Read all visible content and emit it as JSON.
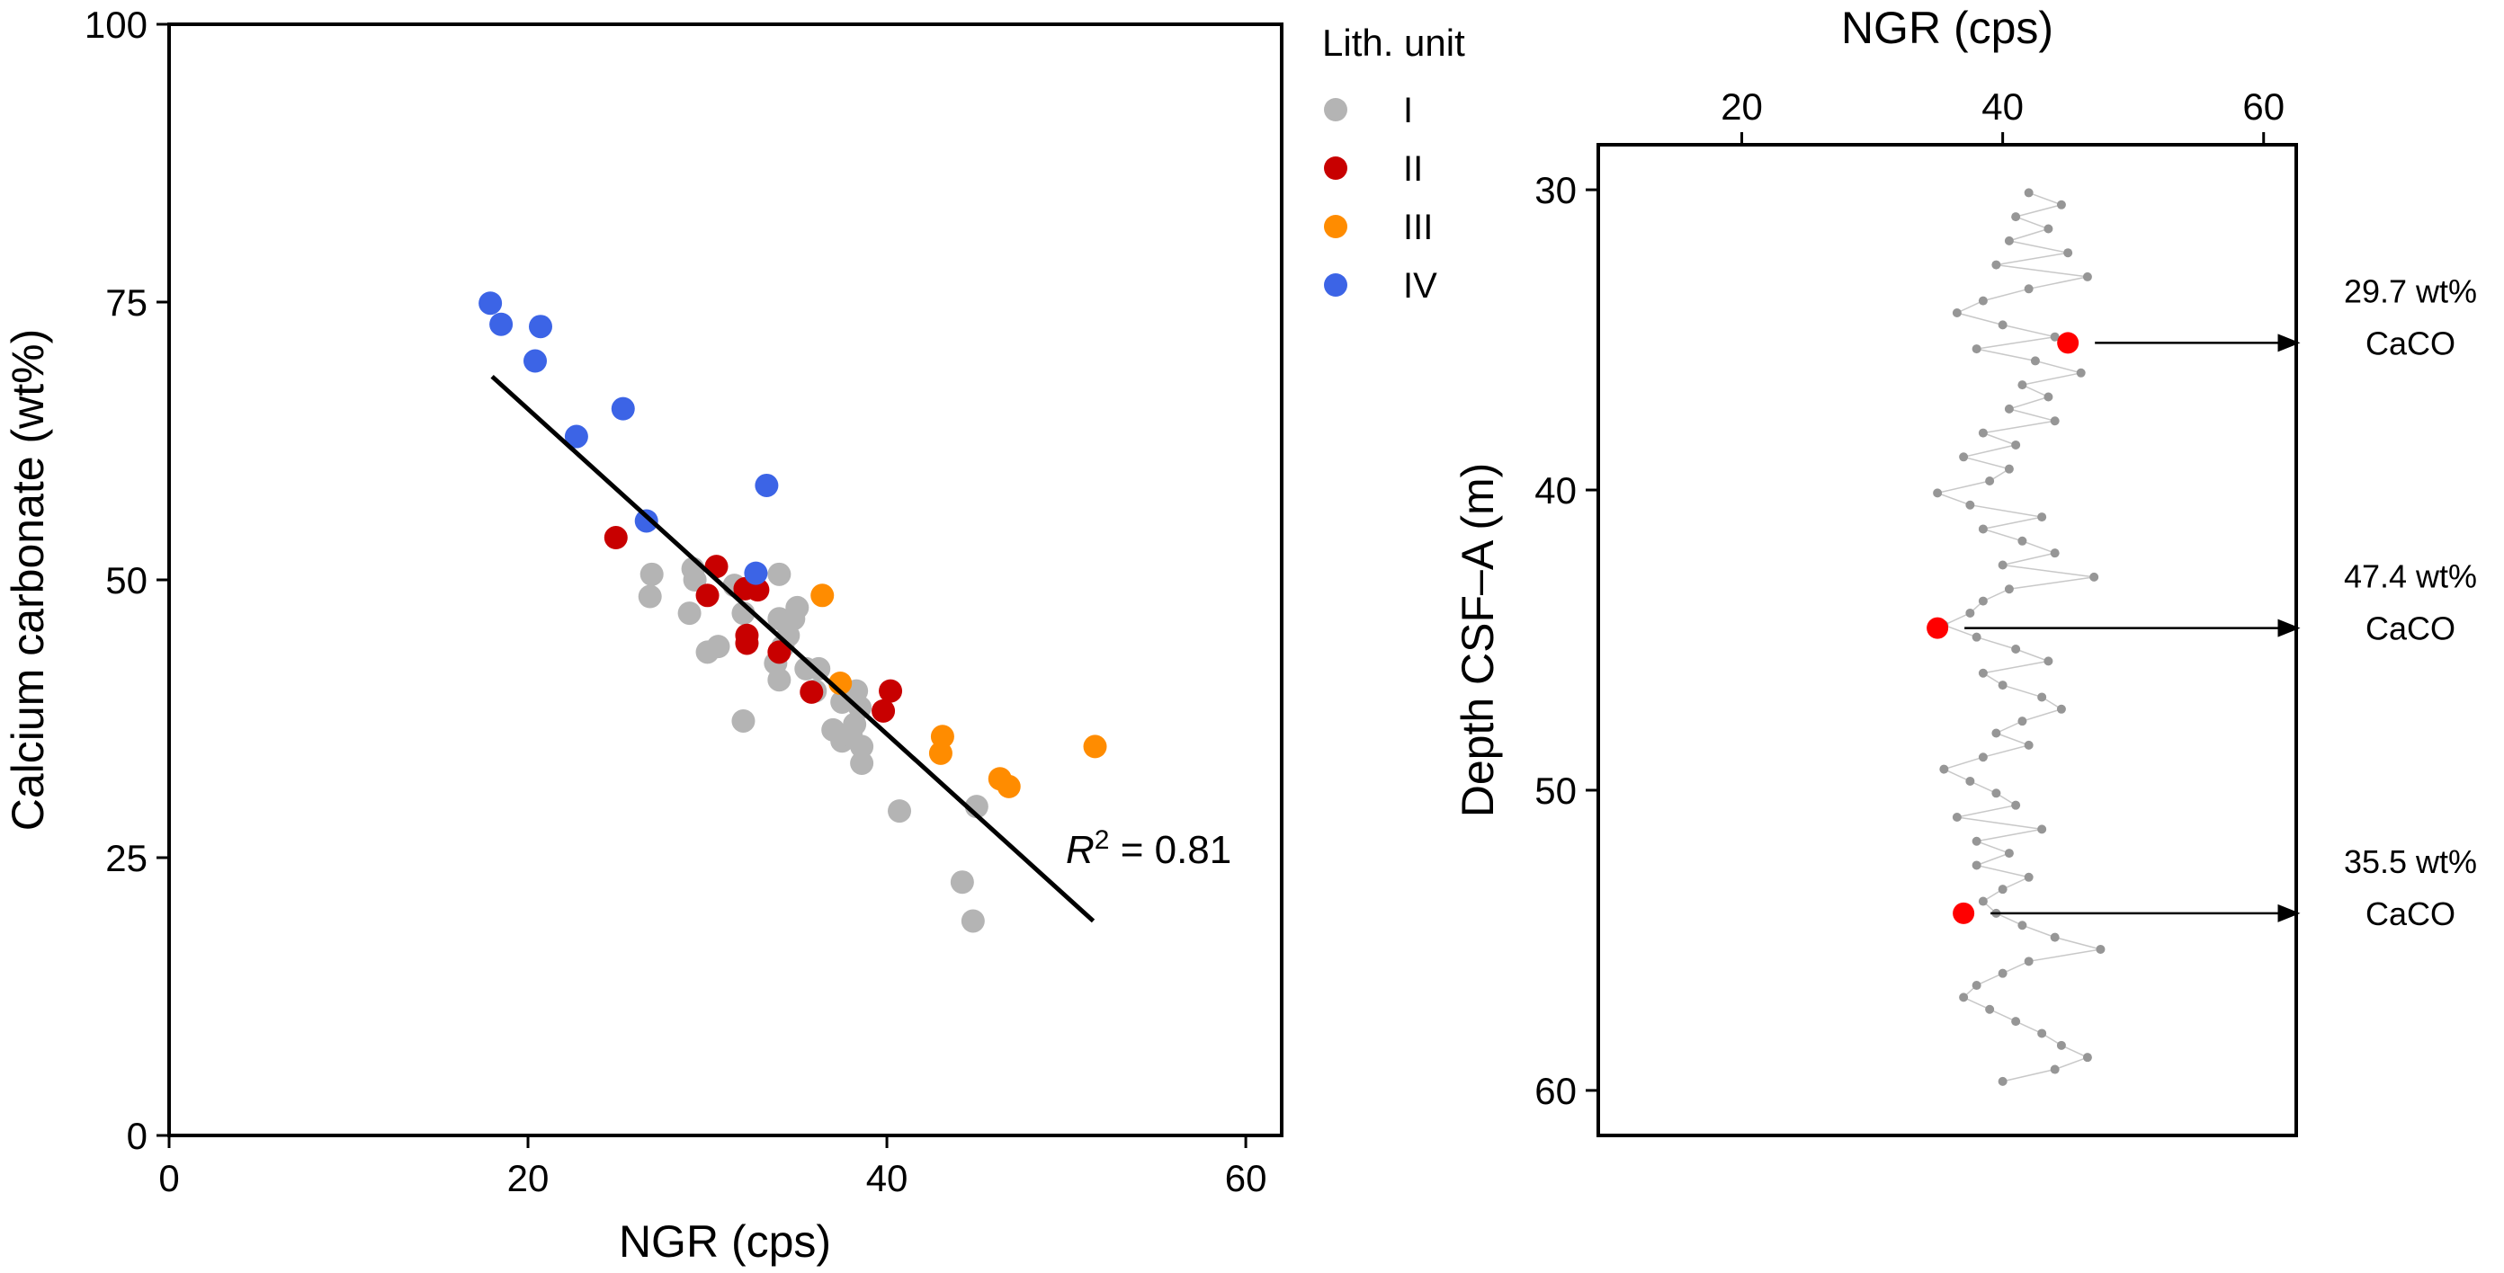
{
  "chart_data": [
    {
      "type": "scatter",
      "xlabel": "NGR (cps)",
      "ylabel": "Calcium carbonate (wt%)",
      "xlim": [
        0,
        62
      ],
      "ylim": [
        0,
        100
      ],
      "xticks": [
        0,
        20,
        40,
        60
      ],
      "yticks": [
        0,
        25,
        50,
        75,
        100
      ],
      "legend": {
        "title": "Lith. unit",
        "placement": "outside-right",
        "entries": [
          {
            "label": "I",
            "color": "#b4b4b4"
          },
          {
            "label": "II",
            "color": "#c80000"
          },
          {
            "label": "III",
            "color": "#ff8c00"
          },
          {
            "label": "IV",
            "color": "#3c64e6"
          }
        ]
      },
      "series": [
        {
          "name": "I",
          "color": "#b4b4b4",
          "points": [
            [
              26.9,
              50.5
            ],
            [
              26.8,
              48.5
            ],
            [
              29.2,
              51.0
            ],
            [
              29.3,
              50.0
            ],
            [
              29.0,
              47.0
            ],
            [
              30.0,
              43.5
            ],
            [
              30.6,
              44.0
            ],
            [
              32.0,
              47.0
            ],
            [
              31.5,
              49.5
            ],
            [
              34.0,
              50.5
            ],
            [
              34.0,
              46.5
            ],
            [
              34.8,
              46.5
            ],
            [
              35.0,
              47.5
            ],
            [
              34.5,
              45.0
            ],
            [
              34.2,
              44.0
            ],
            [
              33.8,
              42.5
            ],
            [
              34.0,
              41.0
            ],
            [
              35.5,
              42.0
            ],
            [
              36.2,
              42.0
            ],
            [
              36.0,
              40.0
            ],
            [
              37.5,
              39.0
            ],
            [
              37.0,
              36.5
            ],
            [
              37.5,
              35.5
            ],
            [
              38.0,
              36.0
            ],
            [
              38.3,
              40.0
            ],
            [
              38.5,
              38.5
            ],
            [
              38.2,
              37.0
            ],
            [
              38.6,
              35.0
            ],
            [
              38.6,
              33.5
            ],
            [
              32.0,
              37.3
            ],
            [
              40.7,
              29.2
            ],
            [
              45.0,
              29.6
            ],
            [
              44.2,
              22.8
            ],
            [
              44.8,
              19.3
            ]
          ]
        },
        {
          "name": "II",
          "color": "#c80000",
          "points": [
            [
              24.9,
              53.8
            ],
            [
              30.5,
              51.2
            ],
            [
              30.0,
              48.6
            ],
            [
              32.1,
              49.2
            ],
            [
              32.8,
              49.1
            ],
            [
              32.2,
              45.0
            ],
            [
              32.2,
              44.3
            ],
            [
              34.0,
              43.5
            ],
            [
              35.8,
              39.9
            ],
            [
              40.2,
              40.0
            ],
            [
              39.8,
              38.2
            ]
          ]
        },
        {
          "name": "III",
          "color": "#ff8c00",
          "points": [
            [
              36.4,
              48.6
            ],
            [
              37.4,
              40.7
            ],
            [
              43.1,
              35.9
            ],
            [
              43.0,
              34.4
            ],
            [
              46.3,
              32.1
            ],
            [
              46.8,
              31.4
            ],
            [
              51.6,
              35.0
            ]
          ]
        },
        {
          "name": "IV",
          "color": "#3c64e6",
          "points": [
            [
              17.9,
              74.9
            ],
            [
              18.5,
              73.0
            ],
            [
              20.7,
              72.8
            ],
            [
              20.4,
              69.7
            ],
            [
              25.3,
              65.4
            ],
            [
              22.7,
              62.9
            ],
            [
              26.6,
              55.3
            ],
            [
              33.3,
              58.5
            ],
            [
              32.7,
              50.6
            ]
          ]
        }
      ],
      "fit_line": {
        "x": [
          18.0,
          51.5
        ],
        "y": [
          68.3,
          19.3
        ]
      },
      "annotations": [
        {
          "text": "R2 = 0.81",
          "italic": "R",
          "superscript": "2",
          "rest": " = 0.81"
        }
      ]
    },
    {
      "type": "line",
      "xlabel": "NGR (cps)",
      "ylabel": "Depth CSF–A (m)",
      "x_axis_position": "top",
      "y_axis_reversed": true,
      "xlim": [
        9.0,
        62.5
      ],
      "ylim": [
        28.5,
        61.5
      ],
      "xticks": [
        20,
        40,
        60
      ],
      "yticks": [
        30,
        40,
        50,
        60
      ],
      "series": [
        {
          "name": "",
          "color": "#969696",
          "depth": [
            30.1,
            30.5,
            30.9,
            31.3,
            31.7,
            32.1,
            32.5,
            32.9,
            33.3,
            33.7,
            34.1,
            34.5,
            34.9,
            35.3,
            35.7,
            36.1,
            36.5,
            36.9,
            37.3,
            37.7,
            38.1,
            38.5,
            38.9,
            39.3,
            39.7,
            40.1,
            40.5,
            40.9,
            41.3,
            41.7,
            42.1,
            42.5,
            42.9,
            43.3,
            43.7,
            44.1,
            44.5,
            44.9,
            45.3,
            45.7,
            46.1,
            46.5,
            46.9,
            47.3,
            47.7,
            48.1,
            48.5,
            48.9,
            49.3,
            49.7,
            50.1,
            50.5,
            50.9,
            51.3,
            51.7,
            52.1,
            52.5,
            52.9,
            53.3,
            53.7,
            54.1,
            54.5,
            54.9,
            55.3,
            55.7,
            56.1,
            56.5,
            56.9,
            57.3,
            57.7,
            58.1,
            58.5,
            58.9,
            59.3,
            59.7
          ],
          "ngr": [
            42.0,
            44.5,
            41.0,
            43.5,
            40.5,
            45.0,
            39.5,
            46.5,
            42.0,
            38.5,
            36.5,
            40.0,
            44.0,
            38.0,
            42.5,
            46.0,
            41.5,
            43.5,
            40.5,
            44.0,
            38.5,
            41.0,
            37.0,
            40.5,
            39.0,
            35.0,
            37.5,
            43.0,
            38.5,
            41.5,
            44.0,
            40.0,
            47.0,
            40.5,
            38.5,
            37.5,
            35.5,
            38.0,
            41.0,
            43.5,
            38.5,
            40.0,
            43.0,
            44.5,
            41.5,
            39.5,
            42.0,
            38.5,
            35.5,
            37.5,
            39.5,
            41.0,
            36.5,
            43.0,
            38.0,
            40.5,
            38.0,
            42.0,
            40.0,
            38.5,
            39.5,
            41.5,
            44.0,
            47.5,
            42.0,
            40.0,
            38.0,
            37.0,
            39.0,
            41.0,
            43.0,
            44.5,
            46.5,
            44.0,
            40.0
          ]
        }
      ],
      "highlights": [
        {
          "ngr": 45.0,
          "depth": 35.1,
          "value_label": "29.7 wt%",
          "unit_label": "CaCO",
          "color": "#ff0000"
        },
        {
          "ngr": 35.0,
          "depth": 44.6,
          "value_label": "47.4 wt%",
          "unit_label": "CaCO",
          "color": "#ff0000"
        },
        {
          "ngr": 37.0,
          "depth": 54.1,
          "value_label": "35.5 wt%",
          "unit_label": "CaCO",
          "color": "#ff0000"
        }
      ]
    }
  ]
}
